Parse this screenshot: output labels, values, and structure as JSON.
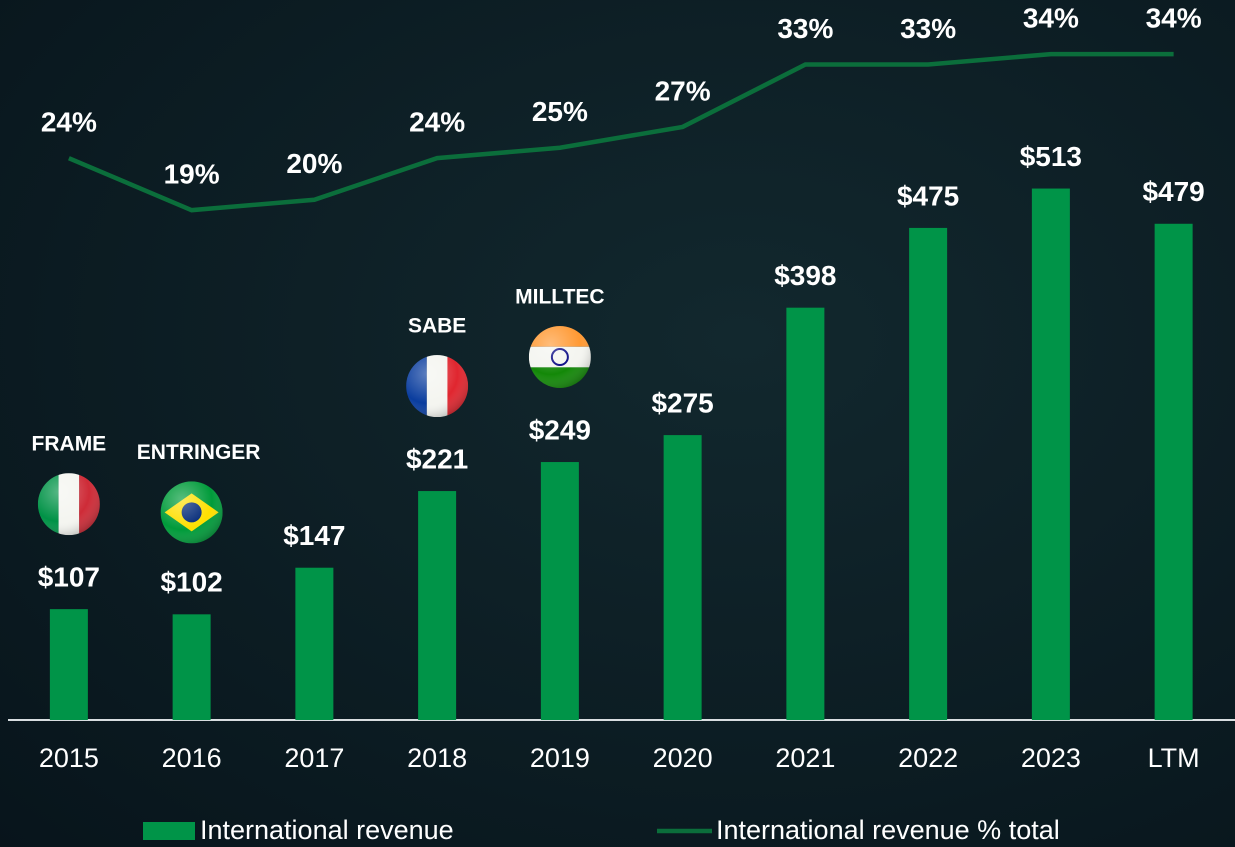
{
  "chart_data": {
    "type": "bar",
    "categories": [
      "2015",
      "2016",
      "2017",
      "2018",
      "2019",
      "2020",
      "2021",
      "2022",
      "2023",
      "LTM"
    ],
    "series": [
      {
        "name": "International revenue",
        "type": "bar",
        "color": "#009448",
        "values": [
          107,
          102,
          147,
          221,
          249,
          275,
          398,
          475,
          513,
          479
        ],
        "value_labels": [
          "$107",
          "$102",
          "$147",
          "$221",
          "$249",
          "$275",
          "$398",
          "$475",
          "$513",
          "$479"
        ]
      },
      {
        "name": "International revenue % total",
        "type": "line",
        "axis": "y2",
        "color": "#0b6e3b",
        "values": [
          24,
          19,
          20,
          24,
          25,
          27,
          33,
          33,
          34,
          34
        ],
        "value_labels": [
          "24%",
          "19%",
          "20%",
          "24%",
          "25%",
          "27%",
          "33%",
          "33%",
          "34%",
          "34%"
        ]
      }
    ],
    "annotations": [
      {
        "text": "FRAME",
        "category": "2015"
      },
      {
        "text": "ENTRINGER",
        "category": "2016"
      },
      {
        "text": "SABE",
        "category": "2018"
      },
      {
        "text": "MILLTEC",
        "category": "2019"
      }
    ],
    "ylim": [
      0,
      695
    ],
    "y2lim": [
      -30,
      39.2
    ],
    "legend": "bottom"
  }
}
